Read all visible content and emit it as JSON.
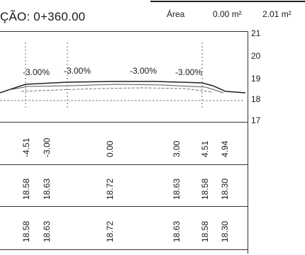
{
  "header": {
    "station": "ÇÃO: 0+360.00",
    "area_label": "Área",
    "area_values": [
      "0.00 m²",
      "2.01 m²"
    ]
  },
  "elevation_axis": [
    "21",
    "20",
    "19",
    "18",
    "17"
  ],
  "slopes": [
    "-3.00%",
    "-3.00%",
    "-3.00%",
    "-3.00%"
  ],
  "rows": [
    {
      "name": "offsets",
      "values": [
        "-4.51",
        "-3.00",
        "0.00",
        "3.00",
        "4.51",
        "4.94"
      ]
    },
    {
      "name": "elev-a",
      "values": [
        "18.58",
        "18.63",
        "18.72",
        "18.63",
        "18.58",
        "18.30"
      ]
    },
    {
      "name": "elev-b",
      "values": [
        "18.58",
        "18.63",
        "18.72",
        "18.63",
        "18.58",
        "18.30"
      ]
    }
  ]
}
